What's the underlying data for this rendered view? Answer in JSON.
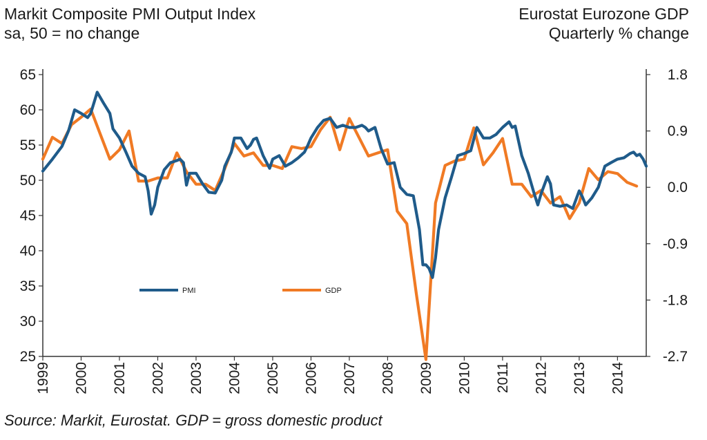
{
  "header": {
    "left_title": "Markit Composite PMI Output Index",
    "left_subtitle": "sa, 50 = no change",
    "right_title": "Eurostat Eurozone GDP",
    "right_subtitle": "Quarterly % change"
  },
  "source": "Source: Markit, Eurostat. GDP = gross domestic product",
  "colors": {
    "pmi": "#1f5b8a",
    "gdp": "#f07a24"
  },
  "chart_data": {
    "type": "line",
    "x_ticks": [
      "1999",
      "2000",
      "2001",
      "2002",
      "2003",
      "2004",
      "2005",
      "2006",
      "2007",
      "2008",
      "2009",
      "2010",
      "2011",
      "2012",
      "2013",
      "2014"
    ],
    "y_left": {
      "ticks": [
        "25",
        "30",
        "35",
        "40",
        "45",
        "50",
        "55",
        "60",
        "65"
      ],
      "ylim": [
        25,
        65
      ]
    },
    "y_right": {
      "ticks": [
        "-2.7",
        "-1.8",
        "-0.9",
        "0.0",
        "0.9",
        "1.8"
      ],
      "ylim": [
        -2.7,
        1.8
      ]
    },
    "legend_placement": "inside-left",
    "series": [
      {
        "name": "PMI",
        "axis": "left",
        "x": [
          1999.0,
          1999.25,
          1999.5,
          1999.67,
          1999.83,
          2000.0,
          2000.17,
          2000.25,
          2000.42,
          2000.58,
          2000.75,
          2000.83,
          2001.0,
          2001.17,
          2001.33,
          2001.5,
          2001.67,
          2001.75,
          2001.83,
          2001.92,
          2002.0,
          2002.17,
          2002.33,
          2002.5,
          2002.58,
          2002.67,
          2002.75,
          2002.83,
          2003.0,
          2003.17,
          2003.33,
          2003.5,
          2003.67,
          2003.75,
          2003.92,
          2004.0,
          2004.17,
          2004.33,
          2004.42,
          2004.5,
          2004.58,
          2004.75,
          2004.92,
          2005.0,
          2005.17,
          2005.33,
          2005.5,
          2005.67,
          2005.83,
          2005.92,
          2006.0,
          2006.17,
          2006.33,
          2006.5,
          2006.67,
          2006.83,
          2007.0,
          2007.17,
          2007.33,
          2007.42,
          2007.5,
          2007.67,
          2007.83,
          2008.0,
          2008.17,
          2008.33,
          2008.5,
          2008.67,
          2008.83,
          2008.92,
          2009.0,
          2009.08,
          2009.17,
          2009.25,
          2009.33,
          2009.5,
          2009.67,
          2009.83,
          2010.0,
          2010.17,
          2010.33,
          2010.5,
          2010.67,
          2010.83,
          2011.0,
          2011.17,
          2011.25,
          2011.33,
          2011.5,
          2011.67,
          2011.83,
          2011.92,
          2012.0,
          2012.17,
          2012.25,
          2012.33,
          2012.5,
          2012.67,
          2012.83,
          2013.0,
          2013.08,
          2013.17,
          2013.33,
          2013.5,
          2013.67,
          2013.83,
          2014.0,
          2014.17,
          2014.33,
          2014.42,
          2014.5,
          2014.58,
          2014.67,
          2014.75
        ],
        "values": [
          51.3,
          53,
          54.8,
          57,
          60,
          59.5,
          58.9,
          59.5,
          62.5,
          61,
          59.5,
          57.3,
          56,
          54,
          52,
          51,
          50.5,
          48.5,
          45.2,
          46.5,
          49,
          51.5,
          52.5,
          52.8,
          53,
          52.5,
          49.3,
          51,
          51,
          49.5,
          48.3,
          48.2,
          50,
          52,
          54,
          56,
          56,
          54.5,
          55,
          55.8,
          56,
          53.5,
          51.7,
          53,
          53.5,
          52,
          52.5,
          53.2,
          54,
          55,
          56,
          57.5,
          58.5,
          58.8,
          57.5,
          57.8,
          57.5,
          57.5,
          57.8,
          57.5,
          57,
          57.5,
          54.5,
          52.3,
          52.5,
          49,
          48,
          47.8,
          43,
          38,
          38,
          37.5,
          36.2,
          39,
          43,
          47.5,
          50.5,
          53.5,
          53.8,
          54.2,
          57.5,
          56,
          56,
          56.5,
          57.5,
          58.3,
          57.5,
          57.7,
          53.5,
          51,
          48,
          46.5,
          48,
          50.5,
          49.5,
          46.5,
          46.3,
          46.5,
          46,
          48.5,
          47.7,
          46.5,
          47.5,
          49,
          52,
          52.5,
          53,
          53.2,
          53.8,
          54,
          53.5,
          53.7,
          53,
          52
        ]
      },
      {
        "name": "GDP",
        "axis": "right",
        "x": [
          1999.0,
          1999.25,
          1999.5,
          1999.75,
          2000.0,
          2000.25,
          2000.5,
          2000.75,
          2001.0,
          2001.25,
          2001.5,
          2001.75,
          2002.0,
          2002.25,
          2002.5,
          2002.75,
          2003.0,
          2003.25,
          2003.5,
          2003.75,
          2004.0,
          2004.25,
          2004.5,
          2004.75,
          2005.0,
          2005.25,
          2005.5,
          2005.75,
          2006.0,
          2006.25,
          2006.5,
          2006.75,
          2007.0,
          2007.25,
          2007.5,
          2007.75,
          2008.0,
          2008.25,
          2008.5,
          2008.75,
          2009.0,
          2009.25,
          2009.5,
          2009.75,
          2010.0,
          2010.25,
          2010.5,
          2010.75,
          2011.0,
          2011.25,
          2011.5,
          2011.75,
          2012.0,
          2012.25,
          2012.5,
          2012.75,
          2013.0,
          2013.25,
          2013.5,
          2013.75,
          2014.0,
          2014.25,
          2014.5
        ],
        "values": [
          0.45,
          0.8,
          0.7,
          1.0,
          1.12,
          1.25,
          0.85,
          0.45,
          0.6,
          0.9,
          0.1,
          0.1,
          0.15,
          0.15,
          0.55,
          0.25,
          0.05,
          0.05,
          -0.05,
          0.3,
          0.7,
          0.5,
          0.55,
          0.35,
          0.35,
          0.3,
          0.65,
          0.62,
          0.65,
          0.92,
          1.12,
          0.6,
          1.1,
          0.8,
          0.5,
          0.55,
          0.6,
          -0.38,
          -0.58,
          -1.7,
          -2.75,
          -0.25,
          0.35,
          0.42,
          0.45,
          0.95,
          0.36,
          0.55,
          0.78,
          0.05,
          0.05,
          -0.15,
          -0.05,
          -0.25,
          -0.15,
          -0.5,
          -0.25,
          0.3,
          0.12,
          0.25,
          0.22,
          0.08,
          0.02
        ]
      }
    ]
  }
}
